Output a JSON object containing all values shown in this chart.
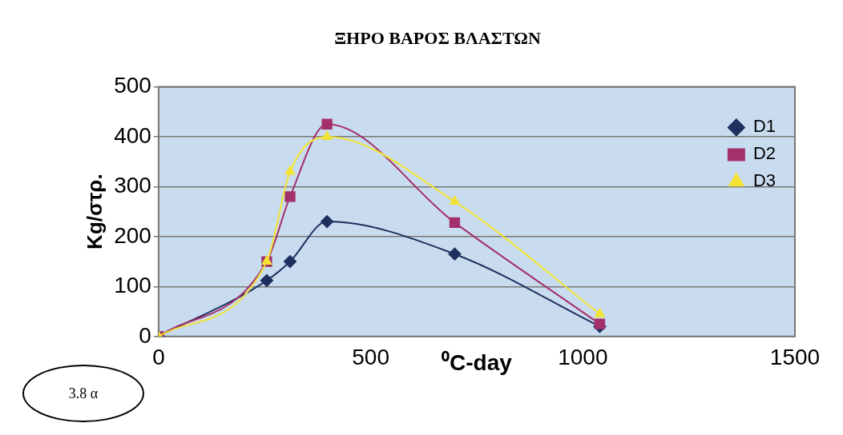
{
  "chart_data": {
    "type": "line",
    "title": "ΞΗΡΟ ΒΑΡΟΣ ΒΛΑΣΤΩΝ",
    "xlabel": "⁰C-day",
    "ylabel": "Kg/στρ.",
    "x": [
      0,
      255,
      310,
      397,
      698,
      1040
    ],
    "series": [
      {
        "name": "D1",
        "color": "#1f2f5f",
        "marker": "diamond",
        "values": [
          0,
          112,
          150,
          230,
          165,
          20
        ]
      },
      {
        "name": "D2",
        "color": "#a3306a",
        "marker": "square",
        "values": [
          0,
          150,
          280,
          425,
          228,
          25
        ]
      },
      {
        "name": "D3",
        "color": "#f2e234",
        "marker": "triangle",
        "values": [
          0,
          150,
          330,
          400,
          270,
          45
        ]
      }
    ],
    "xlim": [
      0,
      1500
    ],
    "xticks": [
      0,
      500,
      1000,
      1500
    ],
    "ylim": [
      0,
      500
    ],
    "yticks": [
      0,
      100,
      200,
      300,
      400,
      500
    ],
    "grid": "y",
    "legend": "top right",
    "line_style": "solid",
    "annotations": [
      "3.8 α"
    ]
  }
}
